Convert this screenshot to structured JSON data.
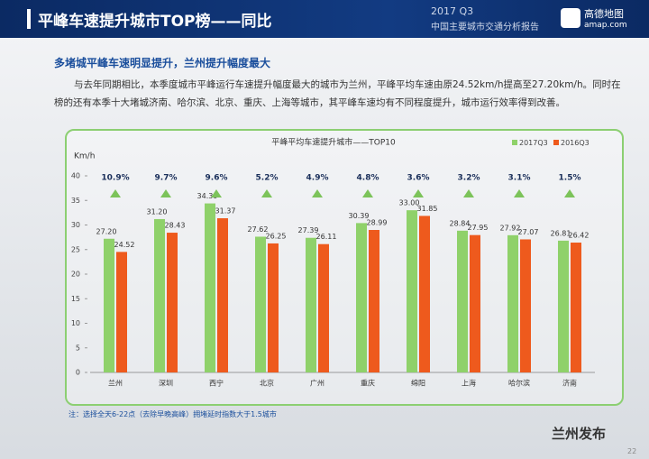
{
  "header": {
    "title": "平峰车速提升城市TOP榜——同比",
    "period": "2017 Q3",
    "report": "中国主要城市交通分析报告",
    "brand": "高德地图",
    "site": "amap.com"
  },
  "subtitle": "多堵城平峰车速明显提升，兰州提升幅度最大",
  "paragraph": "与去年同期相比，本季度城市平峰运行车速提升幅度最大的城市为兰州，平峰平均车速由原24.52km/h提高至27.20km/h。同时在榜的还有本季十大堵城济南、哈尔滨、北京、重庆、上海等城市，其平峰车速均有不同程度提升，城市运行效率得到改善。",
  "chart_data": {
    "type": "bar",
    "title": "平峰平均车速提升城市——TOP10",
    "y_label": "Km/h",
    "categories": [
      "兰州",
      "深圳",
      "西宁",
      "北京",
      "广州",
      "重庆",
      "绵阳",
      "上海",
      "哈尔滨",
      "济南"
    ],
    "series": [
      {
        "name": "2017Q3",
        "color": "#8fd16a",
        "values": [
          27.2,
          31.2,
          34.39,
          27.62,
          27.39,
          30.39,
          33.0,
          28.84,
          27.92,
          26.81
        ],
        "value_labels": [
          "27.20",
          "31.20",
          "34.39",
          "27.62",
          "27.39",
          "30.39",
          "33.00",
          "28.84",
          "27.92",
          "26.81"
        ]
      },
      {
        "name": "2016Q3",
        "color": "#ee5a1d",
        "values": [
          24.52,
          28.43,
          31.37,
          26.25,
          26.11,
          28.99,
          31.85,
          27.95,
          27.07,
          26.42
        ],
        "value_labels": [
          "24.52",
          "28.43",
          "31.37",
          "26.25",
          "26.11",
          "28.99",
          "31.85",
          "27.95",
          "27.07",
          "26.42"
        ]
      }
    ],
    "growth": {
      "color": "#7cc35a",
      "values": [
        10.9,
        9.7,
        9.6,
        5.2,
        4.9,
        4.8,
        3.6,
        3.2,
        3.1,
        1.5
      ],
      "value_labels": [
        "10.9%",
        "9.7%",
        "9.6%",
        "5.2%",
        "4.9%",
        "4.8%",
        "3.6%",
        "3.2%",
        "3.1%",
        "1.5%"
      ]
    },
    "ylim": [
      0,
      40
    ],
    "yticks": [
      0,
      5,
      10,
      15,
      20,
      25,
      30,
      35,
      40
    ],
    "legend": "top-right"
  },
  "note": "注：选择全天6-22点（去除早晚高峰）拥堵延时指数大于1.5城市",
  "watermark": "兰州发布",
  "page_number": "22"
}
